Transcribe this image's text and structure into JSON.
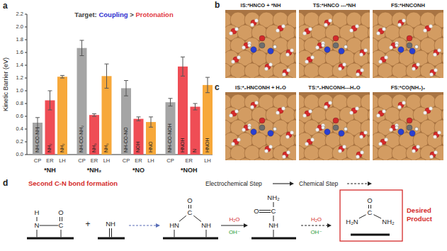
{
  "chart_data": {
    "type": "bar",
    "panel_label": "a",
    "title_parts": [
      {
        "text": "Target: ",
        "color": "#404040"
      },
      {
        "text": "Coupling",
        "color": "#2f2fd0"
      },
      {
        "text": " > ",
        "color": "#404040"
      },
      {
        "text": "Protonation",
        "color": "#e23a42"
      }
    ],
    "y_label": "Kinetic Barrier (eV)",
    "ylim": [
      0,
      2.2
    ],
    "yticks": [
      {
        "value": 0,
        "label": "0.0"
      },
      0.2,
      0.4,
      0.6,
      0.8,
      {
        "value": 1,
        "label": "1.0"
      },
      1.2,
      1.4,
      1.6,
      1.8,
      {
        "value": 2,
        "label": "2.0"
      },
      2.2
    ],
    "groups": [
      {
        "name": "*NH",
        "bars": [
          {
            "method": "CP",
            "label": "NH-CO-NH",
            "value": 0.5,
            "error": 0.08,
            "color": "#a5a5a5"
          },
          {
            "method": "ER",
            "label": "NH₂",
            "value": 0.85,
            "error": 0.15,
            "color": "#ef4d55"
          },
          {
            "method": "LH",
            "label": "NH₂",
            "value": 1.22,
            "error": 0.02,
            "color": "#f7a83a"
          }
        ]
      },
      {
        "name": "*NH₂",
        "bars": [
          {
            "method": "CP",
            "label": "NH-CO-NH₂",
            "value": 1.67,
            "error": 0.12,
            "color": "#a5a5a5"
          },
          {
            "method": "ER",
            "label": "NH₃",
            "value": 0.62,
            "error": 0.02,
            "color": "#ef4d55"
          },
          {
            "method": "LH",
            "label": "NH₃",
            "value": 1.23,
            "error": 0.19,
            "color": "#f7a83a"
          }
        ]
      },
      {
        "name": "*NO",
        "bars": [
          {
            "method": "CP",
            "label": "NH-CO-NO",
            "value": 1.04,
            "error": 0.12,
            "color": "#a5a5a5"
          },
          {
            "method": "ER",
            "label": "NOH",
            "value": 0.56,
            "error": 0.03,
            "color": "#ef4d55"
          },
          {
            "method": "LH",
            "label": "HNO",
            "value": 0.51,
            "error": 0.08,
            "color": "#f7a83a"
          }
        ]
      },
      {
        "name": "*NOH",
        "bars": [
          {
            "method": "CP",
            "label": "NH-CO-NOH",
            "value": 0.82,
            "error": 0.06,
            "color": "#a5a5a5"
          },
          {
            "method": "ER",
            "label": "HNOH",
            "value": 1.38,
            "error": 0.15,
            "color": "#ef4d55"
          },
          {
            "method": "ER",
            "label": "N",
            "value": 0.75,
            "error": 0.05,
            "color": "#ef4d55"
          },
          {
            "method": "LH",
            "label": "HNOH",
            "value": 1.09,
            "error": 0.12,
            "color": "#f7a83a"
          }
        ]
      }
    ]
  },
  "panels": {
    "b": {
      "label": "b",
      "captions": [
        "IS:*HNCO + *NH",
        "TS:*HNCO ---*NH",
        "FS:*HNCONH"
      ]
    },
    "c": {
      "label": "c",
      "captions": [
        "IS:*₂HNCONH + H₂O",
        "TS:*₂HNCONH---H₂O",
        "FS:*CO(NH₂)₂"
      ]
    },
    "d": {
      "label": "d",
      "title": "Second C-N bond formation",
      "steps": [
        "Electrochemical Step",
        "Chemical Step"
      ],
      "plus": "+",
      "molecules": [
        [
          "H",
          "N",
          "C",
          "O"
        ],
        [
          "NH"
        ],
        [
          "O",
          "C",
          "HN",
          "NH"
        ],
        [
          "NH₂",
          "O",
          "C",
          "NH"
        ],
        [
          "O",
          "C",
          "H₂N",
          "NH₂"
        ]
      ],
      "reagents": [
        {
          "above": "H₂O",
          "below": "OH⁻"
        },
        {
          "above": "H₂O",
          "below": "OH⁻"
        }
      ],
      "product_label": "Desired Product"
    }
  }
}
